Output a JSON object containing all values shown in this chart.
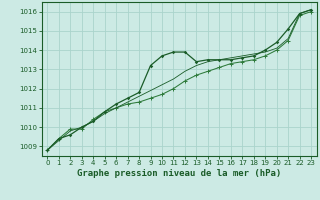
{
  "title": "Graphe pression niveau de la mer (hPa)",
  "background_color": "#cceae4",
  "grid_color": "#aad4cc",
  "line_color_dark": "#1a5c28",
  "line_color_mid": "#2d7a3a",
  "xlim": [
    -0.5,
    23.5
  ],
  "ylim": [
    1008.5,
    1016.5
  ],
  "yticks": [
    1009,
    1010,
    1011,
    1012,
    1013,
    1014,
    1015,
    1016
  ],
  "xticks": [
    0,
    1,
    2,
    3,
    4,
    5,
    6,
    7,
    8,
    9,
    10,
    11,
    12,
    13,
    14,
    15,
    16,
    17,
    18,
    19,
    20,
    21,
    22,
    23
  ],
  "series1_x": [
    0,
    1,
    2,
    3,
    4,
    5,
    6,
    7,
    8,
    9,
    10,
    11,
    12,
    13,
    14,
    15,
    16,
    17,
    18,
    19,
    20,
    21,
    22,
    23
  ],
  "series1_y": [
    1008.8,
    1009.4,
    1009.6,
    1010.0,
    1010.3,
    1010.8,
    1011.2,
    1011.5,
    1011.8,
    1013.2,
    1013.7,
    1013.9,
    1013.9,
    1013.4,
    1013.5,
    1013.5,
    1013.5,
    1013.6,
    1013.7,
    1014.0,
    1014.4,
    1015.1,
    1015.9,
    1016.1
  ],
  "series2_x": [
    0,
    1,
    2,
    3,
    4,
    5,
    6,
    7,
    8,
    9,
    10,
    11,
    12,
    13,
    14,
    15,
    16,
    17,
    18,
    19,
    20,
    21,
    22,
    23
  ],
  "series2_y": [
    1008.8,
    1009.4,
    1009.9,
    1009.9,
    1010.4,
    1010.8,
    1011.0,
    1011.2,
    1011.3,
    1011.5,
    1011.7,
    1012.0,
    1012.4,
    1012.7,
    1012.9,
    1013.1,
    1013.3,
    1013.4,
    1013.5,
    1013.7,
    1014.0,
    1014.5,
    1015.8,
    1016.0
  ],
  "series3_x": [
    0,
    1,
    2,
    3,
    4,
    5,
    6,
    7,
    8,
    9,
    10,
    11,
    12,
    13,
    14,
    15,
    16,
    17,
    18,
    19,
    20,
    21,
    22,
    23
  ],
  "series3_y": [
    1008.8,
    1009.3,
    1009.8,
    1010.0,
    1010.3,
    1010.7,
    1011.0,
    1011.3,
    1011.6,
    1011.9,
    1012.2,
    1012.5,
    1012.9,
    1013.2,
    1013.4,
    1013.5,
    1013.6,
    1013.7,
    1013.8,
    1013.9,
    1014.1,
    1014.6,
    1015.9,
    1016.1
  ],
  "tick_fontsize": 5,
  "title_fontsize": 6.5
}
